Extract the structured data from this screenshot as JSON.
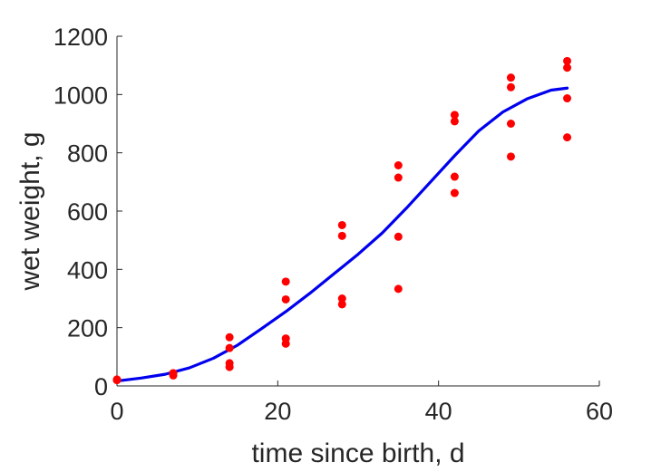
{
  "chart_data": {
    "type": "scatter",
    "title": "",
    "xlabel": "time since birth, d",
    "ylabel": "wet weight, g",
    "xlim": [
      0,
      60
    ],
    "ylim": [
      0,
      1200
    ],
    "xticks": [
      "0",
      "20",
      "40",
      "60"
    ],
    "yticks": [
      "0",
      "200",
      "400",
      "600",
      "800",
      "1000",
      "1200"
    ],
    "grid": false,
    "legend": "none",
    "colors": {
      "points": "#ff0000",
      "fit": "#0000ee",
      "axis": "#262626"
    },
    "series": [
      {
        "type": "scatter",
        "points": [
          [
            0,
            20
          ],
          [
            0,
            22
          ],
          [
            7,
            36
          ],
          [
            7,
            44
          ],
          [
            14,
            65
          ],
          [
            14,
            78
          ],
          [
            14,
            130
          ],
          [
            14,
            167
          ],
          [
            21,
            145
          ],
          [
            21,
            163
          ],
          [
            21,
            297
          ],
          [
            21,
            358
          ],
          [
            28,
            280
          ],
          [
            28,
            300
          ],
          [
            28,
            515
          ],
          [
            28,
            552
          ],
          [
            35,
            333
          ],
          [
            35,
            512
          ],
          [
            35,
            715
          ],
          [
            35,
            757
          ],
          [
            42,
            662
          ],
          [
            42,
            718
          ],
          [
            42,
            908
          ],
          [
            42,
            930
          ],
          [
            49,
            787
          ],
          [
            49,
            900
          ],
          [
            49,
            1025
          ],
          [
            49,
            1058
          ],
          [
            56,
            853
          ],
          [
            56,
            987
          ],
          [
            56,
            1092
          ],
          [
            56,
            1115
          ]
        ]
      },
      {
        "type": "line",
        "points": [
          [
            0,
            17
          ],
          [
            3,
            27
          ],
          [
            6,
            40
          ],
          [
            9,
            62
          ],
          [
            12,
            95
          ],
          [
            15,
            140
          ],
          [
            18,
            197
          ],
          [
            21,
            255
          ],
          [
            24,
            318
          ],
          [
            27,
            385
          ],
          [
            30,
            452
          ],
          [
            33,
            525
          ],
          [
            36,
            610
          ],
          [
            39,
            700
          ],
          [
            42,
            790
          ],
          [
            45,
            875
          ],
          [
            48,
            940
          ],
          [
            51,
            985
          ],
          [
            54,
            1015
          ],
          [
            56,
            1022
          ]
        ]
      }
    ]
  }
}
